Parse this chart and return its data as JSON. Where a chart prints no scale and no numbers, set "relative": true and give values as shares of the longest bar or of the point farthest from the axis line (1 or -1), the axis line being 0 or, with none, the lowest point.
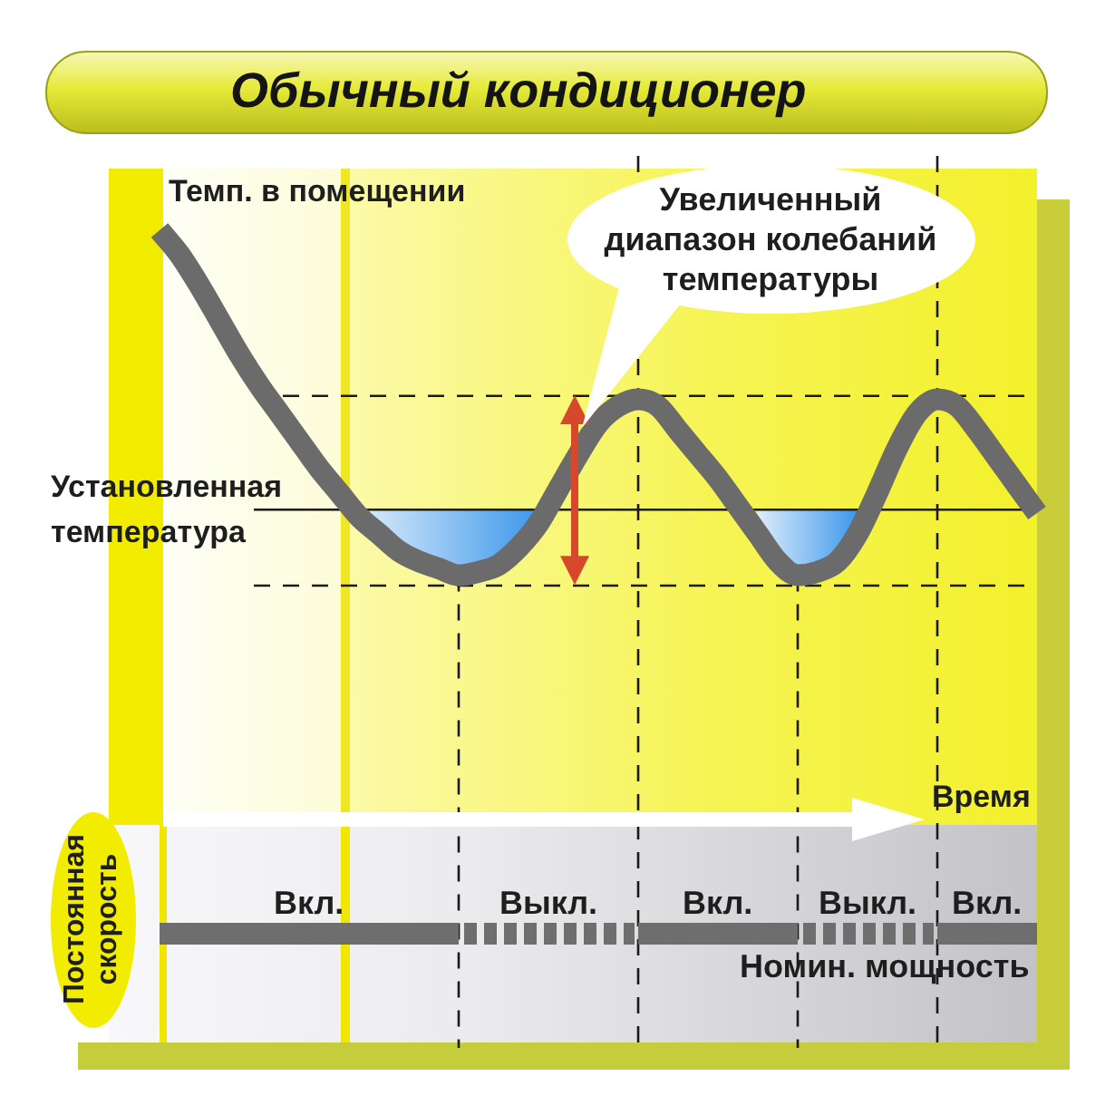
{
  "chart_data": [
    {
      "type": "line",
      "title": "Обычный кондиционер",
      "ylabel": "Темп. в помещении",
      "xlabel": "Время",
      "relative": true,
      "categories": [
        null,
        null,
        null,
        null,
        null,
        null,
        null,
        null,
        null,
        null,
        null,
        null,
        null,
        null,
        null,
        null,
        null,
        null,
        null,
        null,
        null,
        null,
        null,
        null,
        null,
        null,
        null,
        null,
        null,
        null,
        null,
        null,
        null,
        null,
        null,
        null,
        null,
        null,
        null,
        null,
        null,
        null,
        null,
        null,
        null
      ],
      "series": [
        {
          "color": "#6b6b6b",
          "values": [
            1,
            0.93,
            0.84,
            0.74,
            0.64,
            0.55,
            0.47,
            0.39,
            0.31,
            0.24,
            0.17,
            0.12,
            0.07,
            0.04,
            0.02,
            0,
            0.01,
            0.03,
            0.08,
            0.15,
            0.25,
            0.35,
            0.44,
            0.49,
            0.51,
            0.49,
            0.42,
            0.35,
            0.28,
            0.2,
            0.12,
            0.04,
            0,
            0.01,
            0.04,
            0.12,
            0.24,
            0.37,
            0.47,
            0.51,
            0.49,
            0.42,
            0.34,
            0.26,
            0.18
          ],
          "lower": [
            null,
            null,
            null,
            null,
            null,
            null,
            null,
            null,
            null,
            null,
            0.17,
            0.12,
            0.07,
            0.04,
            0.02,
            0,
            0.01,
            0.03,
            0.08,
            0.15,
            null,
            null,
            null,
            null,
            null,
            null,
            null,
            null,
            null,
            null,
            0.12,
            0.04,
            0,
            0.01,
            0.04,
            0.12,
            null,
            null,
            null,
            null,
            null,
            null,
            null,
            null,
            null
          ],
          "upper": [
            null,
            null,
            null,
            null,
            null,
            null,
            null,
            null,
            null,
            null,
            0.19,
            0.19,
            0.19,
            0.19,
            0.19,
            0.19,
            0.19,
            0.19,
            0.19,
            0.19,
            null,
            null,
            null,
            null,
            null,
            null,
            null,
            null,
            null,
            null,
            0.19,
            0.19,
            0.19,
            0.19,
            0.19,
            0.19,
            null,
            null,
            null,
            null,
            null,
            null,
            null,
            null,
            null
          ]
        }
      ],
      "ref_lines": [
        {
          "axis": "y",
          "value": 0.52,
          "line_style": "dashed",
          "color": "#1a1a1a"
        },
        {
          "axis": "y",
          "value": 0.19,
          "label": "Установленная температура",
          "line_style": "solid",
          "color": "#1a1a1a"
        },
        {
          "axis": "y",
          "value": -0.03,
          "line_style": "dashed",
          "color": "#1a1a1a"
        }
      ],
      "annotations": [
        "Увеличенный диапазон колебаний температуры"
      ]
    },
    {
      "type": "other",
      "ylabel": "Постоянная скорость",
      "annotations": [
        "Вкл.",
        "Выкл.",
        "Вкл.",
        "Выкл.",
        "Вкл.",
        "Номин. мощность"
      ]
    }
  ]
}
